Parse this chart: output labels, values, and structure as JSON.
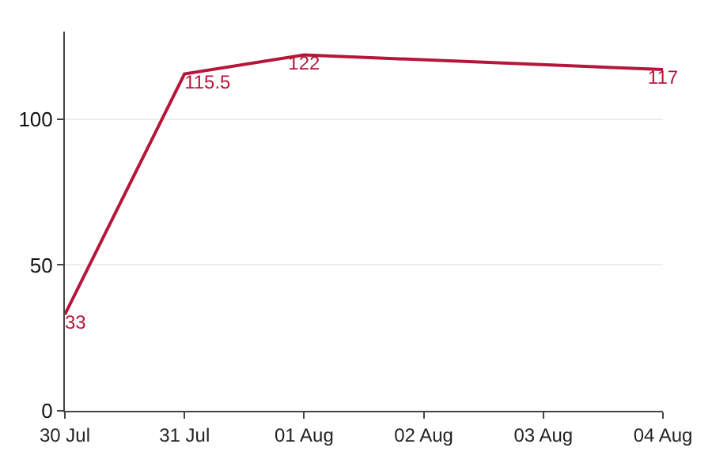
{
  "chart_data": {
    "type": "line",
    "x": [
      "--07-30",
      "--07-31",
      "--08-01",
      "--08-04"
    ],
    "series": [
      {
        "color": "#b5173a",
        "values": [
          33,
          115.5,
          122,
          117
        ]
      }
    ],
    "data_labels": true,
    "xlim": [
      "--07-30",
      "--08-04"
    ],
    "xticks": [
      {
        "value": "--07-30",
        "label": "30 Jul"
      },
      {
        "value": "--07-31",
        "label": "31 Jul"
      },
      {
        "value": "--08-01",
        "label": "01 Aug"
      },
      {
        "value": "--08-02",
        "label": "02 Aug"
      },
      {
        "value": "--08-03",
        "label": "03 Aug"
      },
      {
        "value": "--08-04",
        "label": "04 Aug"
      }
    ],
    "ylim": [
      0,
      130
    ],
    "yticks": [
      0,
      50,
      100
    ],
    "grid": "y",
    "marker": "none",
    "line_style": "solid"
  }
}
